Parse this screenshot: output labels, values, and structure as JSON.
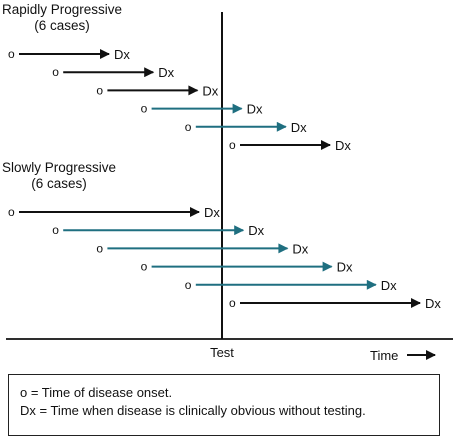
{
  "headings": {
    "rapid": {
      "title": "Rapidly Progressive",
      "count": "(6 cases)"
    },
    "slow": {
      "title": "Slowly Progressive",
      "count": "(6 cases)"
    }
  },
  "marker_onset": "o",
  "marker_dx": "Dx",
  "test_label": "Test",
  "time_label": "Time",
  "legend": [
    "o = Time of disease onset.",
    "Dx = Time when disease is clinically obvious without testing."
  ],
  "colors": {
    "black": "#111111",
    "teal": "#1f6f80"
  },
  "groups": [
    {
      "name": "rapid",
      "cases": [
        {
          "crosses_test": false
        },
        {
          "crosses_test": false
        },
        {
          "crosses_test": false
        },
        {
          "crosses_test": true
        },
        {
          "crosses_test": true
        },
        {
          "crosses_test": false
        }
      ]
    },
    {
      "name": "slow",
      "cases": [
        {
          "crosses_test": false
        },
        {
          "crosses_test": true
        },
        {
          "crosses_test": true
        },
        {
          "crosses_test": true
        },
        {
          "crosses_test": true
        },
        {
          "crosses_test": false
        }
      ]
    }
  ]
}
